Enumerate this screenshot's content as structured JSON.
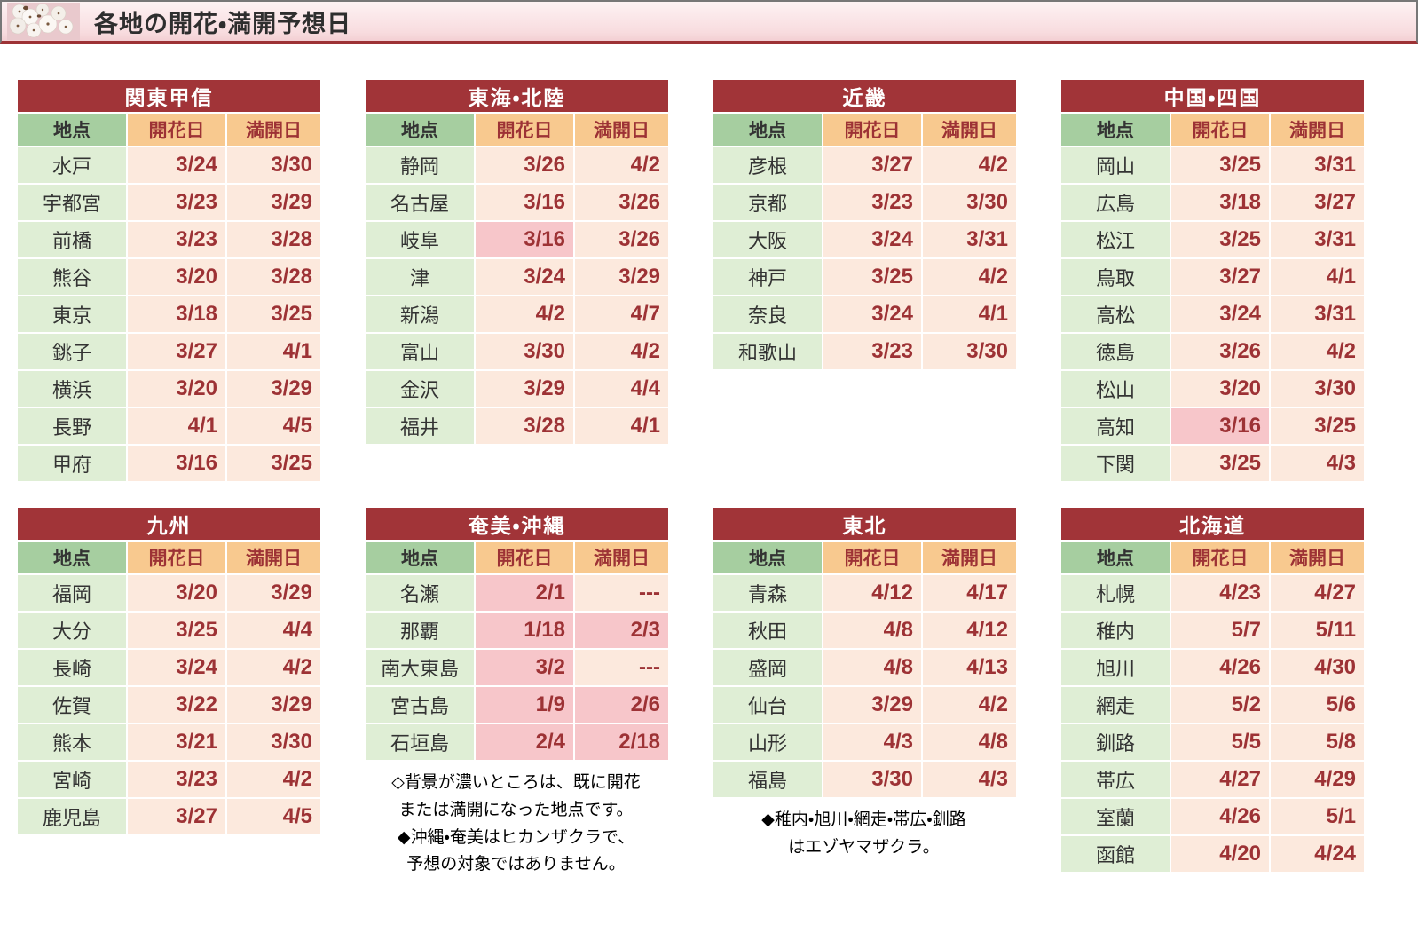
{
  "header": {
    "title": "各地の開花・満開予想日",
    "icon": "cherry-blossom-photo"
  },
  "columns": {
    "location": "地点",
    "flowering": "開花日",
    "full_bloom": "満開日"
  },
  "colors": {
    "title-bar": "#a13438",
    "header-green": "#a6cea0",
    "header-orange": "#f8c98f",
    "cell-green": "#dfeed5",
    "cell-cream": "#fce9dd",
    "cell-pink": "#f7c6ca",
    "date-red": "#9d3235"
  },
  "tables": [
    {
      "region": "関東甲信",
      "rows": [
        {
          "location": "水戸",
          "kaika": "3/24",
          "manka": "3/30",
          "kaika_hl": false,
          "manka_hl": false
        },
        {
          "location": "宇都宮",
          "kaika": "3/23",
          "manka": "3/29",
          "kaika_hl": false,
          "manka_hl": false
        },
        {
          "location": "前橋",
          "kaika": "3/23",
          "manka": "3/28",
          "kaika_hl": false,
          "manka_hl": false
        },
        {
          "location": "熊谷",
          "kaika": "3/20",
          "manka": "3/28",
          "kaika_hl": false,
          "manka_hl": false
        },
        {
          "location": "東京",
          "kaika": "3/18",
          "manka": "3/25",
          "kaika_hl": false,
          "manka_hl": false
        },
        {
          "location": "銚子",
          "kaika": "3/27",
          "manka": "4/1",
          "kaika_hl": false,
          "manka_hl": false
        },
        {
          "location": "横浜",
          "kaika": "3/20",
          "manka": "3/29",
          "kaika_hl": false,
          "manka_hl": false
        },
        {
          "location": "長野",
          "kaika": "4/1",
          "manka": "4/5",
          "kaika_hl": false,
          "manka_hl": false
        },
        {
          "location": "甲府",
          "kaika": "3/16",
          "manka": "3/25",
          "kaika_hl": false,
          "manka_hl": false
        }
      ],
      "notes": []
    },
    {
      "region": "東海・北陸",
      "rows": [
        {
          "location": "静岡",
          "kaika": "3/26",
          "manka": "4/2",
          "kaika_hl": false,
          "manka_hl": false
        },
        {
          "location": "名古屋",
          "kaika": "3/16",
          "manka": "3/26",
          "kaika_hl": false,
          "manka_hl": false
        },
        {
          "location": "岐阜",
          "kaika": "3/16",
          "manka": "3/26",
          "kaika_hl": true,
          "manka_hl": false
        },
        {
          "location": "津",
          "kaika": "3/24",
          "manka": "3/29",
          "kaika_hl": false,
          "manka_hl": false
        },
        {
          "location": "新潟",
          "kaika": "4/2",
          "manka": "4/7",
          "kaika_hl": false,
          "manka_hl": false
        },
        {
          "location": "富山",
          "kaika": "3/30",
          "manka": "4/2",
          "kaika_hl": false,
          "manka_hl": false
        },
        {
          "location": "金沢",
          "kaika": "3/29",
          "manka": "4/4",
          "kaika_hl": false,
          "manka_hl": false
        },
        {
          "location": "福井",
          "kaika": "3/28",
          "manka": "4/1",
          "kaika_hl": false,
          "manka_hl": false
        }
      ],
      "notes": []
    },
    {
      "region": "近畿",
      "rows": [
        {
          "location": "彦根",
          "kaika": "3/27",
          "manka": "4/2",
          "kaika_hl": false,
          "manka_hl": false
        },
        {
          "location": "京都",
          "kaika": "3/23",
          "manka": "3/30",
          "kaika_hl": false,
          "manka_hl": false
        },
        {
          "location": "大阪",
          "kaika": "3/24",
          "manka": "3/31",
          "kaika_hl": false,
          "manka_hl": false
        },
        {
          "location": "神戸",
          "kaika": "3/25",
          "manka": "4/2",
          "kaika_hl": false,
          "manka_hl": false
        },
        {
          "location": "奈良",
          "kaika": "3/24",
          "manka": "4/1",
          "kaika_hl": false,
          "manka_hl": false
        },
        {
          "location": "和歌山",
          "kaika": "3/23",
          "manka": "3/30",
          "kaika_hl": false,
          "manka_hl": false
        }
      ],
      "notes": []
    },
    {
      "region": "中国・四国",
      "rows": [
        {
          "location": "岡山",
          "kaika": "3/25",
          "manka": "3/31",
          "kaika_hl": false,
          "manka_hl": false
        },
        {
          "location": "広島",
          "kaika": "3/18",
          "manka": "3/27",
          "kaika_hl": false,
          "manka_hl": false
        },
        {
          "location": "松江",
          "kaika": "3/25",
          "manka": "3/31",
          "kaika_hl": false,
          "manka_hl": false
        },
        {
          "location": "鳥取",
          "kaika": "3/27",
          "manka": "4/1",
          "kaika_hl": false,
          "manka_hl": false
        },
        {
          "location": "高松",
          "kaika": "3/24",
          "manka": "3/31",
          "kaika_hl": false,
          "manka_hl": false
        },
        {
          "location": "徳島",
          "kaika": "3/26",
          "manka": "4/2",
          "kaika_hl": false,
          "manka_hl": false
        },
        {
          "location": "松山",
          "kaika": "3/20",
          "manka": "3/30",
          "kaika_hl": false,
          "manka_hl": false
        },
        {
          "location": "高知",
          "kaika": "3/16",
          "manka": "3/25",
          "kaika_hl": true,
          "manka_hl": false
        },
        {
          "location": "下関",
          "kaika": "3/25",
          "manka": "4/3",
          "kaika_hl": false,
          "manka_hl": false
        }
      ],
      "notes": []
    },
    {
      "region": "九州",
      "rows": [
        {
          "location": "福岡",
          "kaika": "3/20",
          "manka": "3/29",
          "kaika_hl": false,
          "manka_hl": false
        },
        {
          "location": "大分",
          "kaika": "3/25",
          "manka": "4/4",
          "kaika_hl": false,
          "manka_hl": false
        },
        {
          "location": "長崎",
          "kaika": "3/24",
          "manka": "4/2",
          "kaika_hl": false,
          "manka_hl": false
        },
        {
          "location": "佐賀",
          "kaika": "3/22",
          "manka": "3/29",
          "kaika_hl": false,
          "manka_hl": false
        },
        {
          "location": "熊本",
          "kaika": "3/21",
          "manka": "3/30",
          "kaika_hl": false,
          "manka_hl": false
        },
        {
          "location": "宮崎",
          "kaika": "3/23",
          "manka": "4/2",
          "kaika_hl": false,
          "manka_hl": false
        },
        {
          "location": "鹿児島",
          "kaika": "3/27",
          "manka": "4/5",
          "kaika_hl": false,
          "manka_hl": false
        }
      ],
      "notes": []
    },
    {
      "region": "奄美・沖縄",
      "rows": [
        {
          "location": "名瀬",
          "kaika": "2/1",
          "manka": "---",
          "kaika_hl": true,
          "manka_hl": false
        },
        {
          "location": "那覇",
          "kaika": "1/18",
          "manka": "2/3",
          "kaika_hl": true,
          "manka_hl": true
        },
        {
          "location": "南大東島",
          "kaika": "3/2",
          "manka": "---",
          "kaika_hl": true,
          "manka_hl": false
        },
        {
          "location": "宮古島",
          "kaika": "1/9",
          "manka": "2/6",
          "kaika_hl": true,
          "manka_hl": true
        },
        {
          "location": "石垣島",
          "kaika": "2/4",
          "manka": "2/18",
          "kaika_hl": true,
          "manka_hl": true
        }
      ],
      "notes": [
        "◇背景が濃いところは、既に開花",
        "または満開になった地点です。",
        "◆沖縄・奄美はヒカンザクラで、",
        "予想の対象ではありません。"
      ]
    },
    {
      "region": "東北",
      "rows": [
        {
          "location": "青森",
          "kaika": "4/12",
          "manka": "4/17",
          "kaika_hl": false,
          "manka_hl": false
        },
        {
          "location": "秋田",
          "kaika": "4/8",
          "manka": "4/12",
          "kaika_hl": false,
          "manka_hl": false
        },
        {
          "location": "盛岡",
          "kaika": "4/8",
          "manka": "4/13",
          "kaika_hl": false,
          "manka_hl": false
        },
        {
          "location": "仙台",
          "kaika": "3/29",
          "manka": "4/2",
          "kaika_hl": false,
          "manka_hl": false
        },
        {
          "location": "山形",
          "kaika": "4/3",
          "manka": "4/8",
          "kaika_hl": false,
          "manka_hl": false
        },
        {
          "location": "福島",
          "kaika": "3/30",
          "manka": "4/3",
          "kaika_hl": false,
          "manka_hl": false
        }
      ],
      "notes": [
        "◆稚内・旭川・網走・帯広・釧路",
        "はエゾヤマザクラ。"
      ]
    },
    {
      "region": "北海道",
      "rows": [
        {
          "location": "札幌",
          "kaika": "4/23",
          "manka": "4/27",
          "kaika_hl": false,
          "manka_hl": false
        },
        {
          "location": "稚内",
          "kaika": "5/7",
          "manka": "5/11",
          "kaika_hl": false,
          "manka_hl": false
        },
        {
          "location": "旭川",
          "kaika": "4/26",
          "manka": "4/30",
          "kaika_hl": false,
          "manka_hl": false
        },
        {
          "location": "網走",
          "kaika": "5/2",
          "manka": "5/6",
          "kaika_hl": false,
          "manka_hl": false
        },
        {
          "location": "釧路",
          "kaika": "5/5",
          "manka": "5/8",
          "kaika_hl": false,
          "manka_hl": false
        },
        {
          "location": "帯広",
          "kaika": "4/27",
          "manka": "4/29",
          "kaika_hl": false,
          "manka_hl": false
        },
        {
          "location": "室蘭",
          "kaika": "4/26",
          "manka": "5/1",
          "kaika_hl": false,
          "manka_hl": false
        },
        {
          "location": "函館",
          "kaika": "4/20",
          "manka": "4/24",
          "kaika_hl": false,
          "manka_hl": false
        }
      ],
      "notes": []
    }
  ]
}
